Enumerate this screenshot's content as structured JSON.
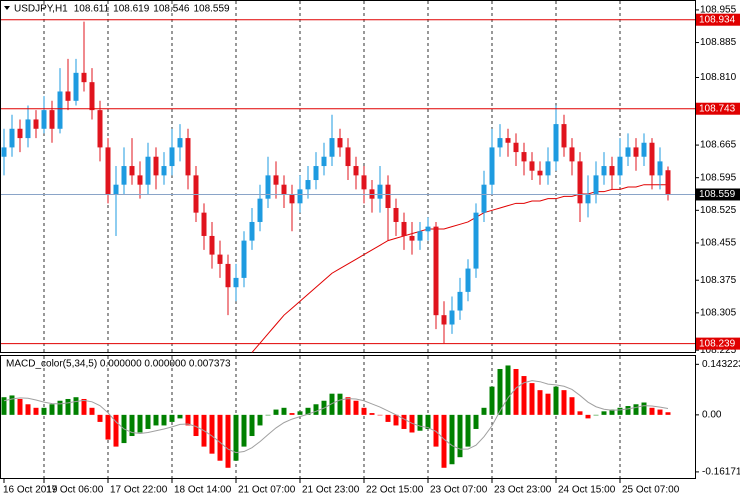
{
  "chart_data": {
    "type": "candlestick",
    "symbol": "USDJPY,H1",
    "header_ohlc": [
      108.611,
      108.619,
      108.546,
      108.559
    ],
    "open": [
      108.64,
      108.66,
      108.7,
      108.68,
      108.72,
      108.7,
      108.74,
      108.7,
      108.78,
      108.76,
      108.82,
      108.8,
      108.74,
      108.66,
      108.56,
      108.58,
      108.62,
      108.6,
      108.58,
      108.64,
      108.6,
      108.62,
      108.66,
      108.68,
      108.6,
      108.52,
      108.47,
      108.43,
      108.41,
      108.36,
      108.38,
      108.46,
      108.5,
      108.55,
      108.6,
      108.58,
      108.56,
      108.54,
      108.57,
      108.59,
      108.62,
      108.64,
      108.68,
      108.66,
      108.62,
      108.6,
      108.57,
      108.55,
      108.58,
      108.53,
      108.5,
      108.47,
      108.46,
      108.48,
      108.49,
      108.3,
      108.28,
      108.31,
      108.35,
      108.4,
      108.52,
      108.58,
      108.66,
      108.68,
      108.67,
      108.65,
      108.63,
      108.61,
      108.6,
      108.63,
      108.71,
      108.66,
      108.63,
      108.54,
      108.56,
      108.6,
      108.62,
      108.6,
      108.64,
      108.66,
      108.64,
      108.67,
      108.6,
      108.611
    ],
    "high": [
      108.7,
      108.73,
      108.72,
      108.75,
      108.74,
      108.77,
      108.76,
      108.83,
      108.85,
      108.85,
      108.93,
      108.83,
      108.76,
      108.68,
      108.62,
      108.66,
      108.68,
      108.63,
      108.67,
      108.66,
      108.65,
      108.7,
      108.71,
      108.7,
      108.62,
      108.54,
      108.5,
      108.46,
      108.43,
      108.41,
      108.48,
      108.53,
      108.58,
      108.64,
      108.63,
      108.6,
      108.58,
      108.6,
      108.62,
      108.65,
      108.67,
      108.73,
      108.7,
      108.68,
      108.64,
      108.62,
      108.59,
      108.62,
      108.6,
      108.55,
      108.52,
      108.5,
      108.5,
      108.51,
      108.5,
      108.33,
      108.34,
      108.38,
      108.42,
      108.54,
      108.61,
      108.7,
      108.71,
      108.7,
      108.69,
      108.67,
      108.65,
      108.63,
      108.66,
      108.75,
      108.73,
      108.68,
      108.65,
      108.6,
      108.63,
      108.65,
      108.64,
      108.68,
      108.69,
      108.68,
      108.69,
      108.68,
      108.66,
      108.619
    ],
    "low": [
      108.6,
      108.64,
      108.65,
      108.66,
      108.68,
      108.69,
      108.67,
      108.69,
      108.74,
      108.75,
      108.78,
      108.72,
      108.63,
      108.54,
      108.47,
      108.56,
      108.58,
      108.55,
      108.56,
      108.57,
      108.58,
      108.6,
      108.63,
      108.57,
      108.5,
      108.44,
      108.4,
      108.38,
      108.3,
      108.33,
      108.36,
      108.44,
      108.48,
      108.53,
      108.55,
      108.53,
      108.48,
      108.52,
      108.55,
      108.57,
      108.6,
      108.62,
      108.64,
      108.59,
      108.57,
      108.54,
      108.52,
      108.52,
      108.46,
      108.47,
      108.44,
      108.43,
      108.44,
      108.46,
      108.27,
      108.24,
      108.26,
      108.29,
      108.33,
      108.38,
      108.5,
      108.56,
      108.64,
      108.64,
      108.62,
      108.6,
      108.59,
      108.58,
      108.58,
      108.61,
      108.64,
      108.6,
      108.5,
      108.51,
      108.54,
      108.58,
      108.57,
      108.58,
      108.62,
      108.61,
      108.62,
      108.57,
      108.57,
      108.546
    ],
    "close": [
      108.66,
      108.7,
      108.68,
      108.72,
      108.7,
      108.74,
      108.7,
      108.78,
      108.76,
      108.82,
      108.8,
      108.74,
      108.66,
      108.56,
      108.58,
      108.62,
      108.6,
      108.58,
      108.64,
      108.6,
      108.62,
      108.66,
      108.68,
      108.6,
      108.52,
      108.47,
      108.43,
      108.41,
      108.36,
      108.38,
      108.46,
      108.5,
      108.55,
      108.6,
      108.58,
      108.56,
      108.54,
      108.57,
      108.59,
      108.62,
      108.64,
      108.68,
      108.66,
      108.62,
      108.6,
      108.57,
      108.55,
      108.58,
      108.53,
      108.5,
      108.47,
      108.46,
      108.48,
      108.49,
      108.3,
      108.28,
      108.31,
      108.35,
      108.4,
      108.52,
      108.58,
      108.66,
      108.68,
      108.67,
      108.65,
      108.63,
      108.61,
      108.6,
      108.63,
      108.71,
      108.66,
      108.63,
      108.54,
      108.56,
      108.6,
      108.62,
      108.6,
      108.64,
      108.66,
      108.64,
      108.67,
      108.6,
      108.63,
      108.559
    ],
    "moving_average": [
      null,
      null,
      null,
      null,
      null,
      null,
      null,
      null,
      null,
      null,
      null,
      null,
      null,
      null,
      null,
      null,
      null,
      null,
      null,
      null,
      null,
      null,
      null,
      null,
      null,
      null,
      null,
      null,
      null,
      null,
      null,
      108.22,
      108.24,
      108.26,
      108.28,
      108.3,
      108.315,
      108.33,
      108.345,
      108.36,
      108.375,
      108.39,
      108.4,
      108.41,
      108.42,
      108.43,
      108.44,
      108.45,
      108.46,
      108.465,
      108.47,
      108.475,
      108.48,
      108.485,
      108.485,
      108.485,
      108.49,
      108.495,
      108.5,
      108.51,
      108.52,
      108.525,
      108.53,
      108.535,
      108.54,
      108.54,
      108.545,
      108.545,
      108.55,
      108.55,
      108.555,
      108.555,
      108.56,
      108.56,
      108.565,
      108.565,
      108.57,
      108.57,
      108.575,
      108.575,
      108.58,
      108.58,
      108.58,
      108.58
    ],
    "bull_color": "#1e9be0",
    "bear_color": "#e0141e",
    "ma_color": "#e00000",
    "ylim": [
      108.221,
      108.972
    ],
    "yticks": [
      108.955,
      108.885,
      {
        "value": 108.81,
        "label": "108.810"
      },
      108.665,
      108.595,
      108.525,
      108.455,
      108.375,
      108.305,
      108.225
    ],
    "levels": [
      108.934,
      108.743,
      108.239
    ],
    "level_color": "#e00000",
    "current_price": 108.559,
    "current_price_color": "#8aa4c8",
    "xticks": [
      {
        "value": 0,
        "label": "16 Oct 2019"
      },
      {
        "value": 5,
        "label": "17 Oct 06:00"
      },
      {
        "value": 13,
        "label": "17 Oct 22:00"
      },
      {
        "value": 21,
        "label": "18 Oct 14:00"
      },
      {
        "value": 29,
        "label": "21 Oct 07:00"
      },
      {
        "value": 37,
        "label": "21 Oct 23:00"
      },
      {
        "value": 45,
        "label": "22 Oct 15:00"
      },
      {
        "value": 53,
        "label": "23 Oct 07:00"
      },
      {
        "value": 61,
        "label": "23 Oct 23:00"
      },
      {
        "value": 69,
        "label": "24 Oct 15:00"
      },
      {
        "value": 77,
        "label": "25 Oct 07:00"
      }
    ],
    "macd": {
      "title": "MACD_color(5,34,5) 0.000000 0.000000 0.007373",
      "histogram": [
        0.05,
        0.055,
        0.045,
        0.03,
        0.02,
        0.02,
        0.03,
        0.04,
        0.045,
        0.05,
        0.045,
        0.02,
        -0.02,
        -0.07,
        -0.09,
        -0.08,
        -0.06,
        -0.05,
        -0.04,
        -0.03,
        -0.03,
        -0.02,
        -0.01,
        -0.03,
        -0.06,
        -0.09,
        -0.11,
        -0.13,
        -0.15,
        -0.13,
        -0.09,
        -0.06,
        -0.03,
        0.0,
        0.015,
        0.02,
        0.005,
        0.01,
        0.02,
        0.03,
        0.04,
        0.06,
        0.06,
        0.05,
        0.04,
        0.02,
        0.005,
        0.0,
        -0.02,
        -0.03,
        -0.04,
        -0.05,
        -0.045,
        -0.04,
        -0.09,
        -0.15,
        -0.14,
        -0.12,
        -0.09,
        -0.04,
        0.02,
        0.08,
        0.13,
        0.14,
        0.13,
        0.11,
        0.09,
        0.07,
        0.06,
        0.08,
        0.07,
        0.05,
        0.01,
        -0.01,
        0.0,
        0.01,
        0.015,
        0.02,
        0.025,
        0.03,
        0.035,
        0.02,
        0.015,
        0.007373
      ],
      "signal": [
        0.04,
        0.045,
        0.048,
        0.047,
        0.042,
        0.036,
        0.032,
        0.031,
        0.034,
        0.038,
        0.041,
        0.037,
        0.026,
        0.006,
        -0.02,
        -0.04,
        -0.05,
        -0.053,
        -0.05,
        -0.045,
        -0.04,
        -0.034,
        -0.027,
        -0.026,
        -0.033,
        -0.045,
        -0.06,
        -0.078,
        -0.097,
        -0.107,
        -0.104,
        -0.093,
        -0.076,
        -0.056,
        -0.037,
        -0.022,
        -0.012,
        -0.005,
        0.002,
        0.01,
        0.019,
        0.032,
        0.042,
        0.046,
        0.045,
        0.04,
        0.031,
        0.022,
        0.011,
        0.0,
        -0.012,
        -0.024,
        -0.032,
        -0.036,
        -0.047,
        -0.069,
        -0.087,
        -0.097,
        -0.097,
        -0.086,
        -0.062,
        -0.031,
        0.011,
        0.048,
        0.076,
        0.091,
        0.097,
        0.094,
        0.087,
        0.085,
        0.081,
        0.072,
        0.055,
        0.036,
        0.023,
        0.016,
        0.013,
        0.014,
        0.017,
        0.021,
        0.026,
        0.025,
        0.022,
        0.018
      ],
      "up_color": "#008000",
      "down_color": "#ff0000",
      "signal_color": "#a0a0a0",
      "ylim": [
        -0.179,
        0.164
      ],
      "yticks": [
        0.143223,
        {
          "value": 0,
          "label": "0.00"
        },
        -0.161711
      ]
    }
  }
}
